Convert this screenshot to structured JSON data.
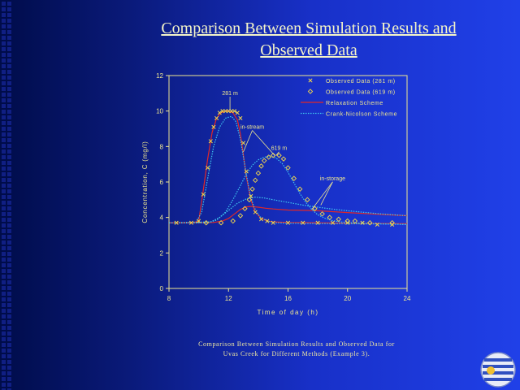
{
  "slide": {
    "title_line1": "Comparison Between Simulation Results and",
    "title_line2": "Observed Data",
    "caption_line1": "Comparison Between Simulation Results and Observed Data for",
    "caption_line2": "Uvas Creek for Different Methods (Example 3)."
  },
  "chart_data": {
    "type": "line",
    "xlabel": "Time of day (h)",
    "ylabel": "Concentration, C (mg/l)",
    "xlim": [
      8,
      24
    ],
    "ylim": [
      0,
      12
    ],
    "x_ticks": [
      8,
      12,
      16,
      20,
      24
    ],
    "y_ticks": [
      0,
      2,
      4,
      6,
      8,
      10,
      12
    ],
    "grid": false,
    "legend_position": "top-right",
    "colors": {
      "axis": "#f0e890",
      "observed_281": "#f4d84a",
      "observed_619": "#f4d84a",
      "relaxation": "#e02828",
      "crank_nicolson": "#40c8f0"
    },
    "series": [
      {
        "name": "Observed Data (281 m)",
        "style": "marker-x",
        "x": [
          8.5,
          9.5,
          10,
          10.3,
          10.6,
          10.8,
          11.0,
          11.2,
          11.4,
          11.6,
          11.8,
          12.0,
          12.2,
          12.4,
          12.6,
          12.8,
          13.0,
          13.2,
          13.5,
          13.8,
          14.2,
          14.6,
          15.0,
          16,
          17,
          18,
          19,
          20,
          21,
          22,
          23
        ],
        "y": [
          3.7,
          3.7,
          3.8,
          5.3,
          6.8,
          8.3,
          9.1,
          9.6,
          9.9,
          10.0,
          10.0,
          10.0,
          10.0,
          10.0,
          9.9,
          9.6,
          8.2,
          6.6,
          5.2,
          4.3,
          3.9,
          3.8,
          3.7,
          3.7,
          3.7,
          3.7,
          3.7,
          3.7,
          3.7,
          3.6,
          3.6
        ]
      },
      {
        "name": "Observed Data (619 m)",
        "style": "marker-diamond",
        "x": [
          10.5,
          11.5,
          12.3,
          12.8,
          13.1,
          13.4,
          13.6,
          13.8,
          14.0,
          14.2,
          14.4,
          14.7,
          15.0,
          15.4,
          15.7,
          16.0,
          16.4,
          16.8,
          17.3,
          17.8,
          18.3,
          18.8,
          19.4,
          20.0,
          20.5,
          21.5,
          23.0
        ],
        "y": [
          3.7,
          3.7,
          3.8,
          4.1,
          4.5,
          5.0,
          5.6,
          6.1,
          6.5,
          6.9,
          7.2,
          7.4,
          7.5,
          7.5,
          7.3,
          6.8,
          6.2,
          5.6,
          5.0,
          4.5,
          4.2,
          4.0,
          3.9,
          3.8,
          3.8,
          3.7,
          3.7
        ]
      },
      {
        "name": "Relaxation Scheme",
        "style": "solid",
        "x": [
          8,
          9.6,
          10.0,
          10.3,
          10.6,
          10.9,
          11.2,
          11.5,
          11.8,
          12.0,
          12.3,
          12.6,
          12.8,
          13.0,
          13.2,
          13.5,
          13.8,
          14.2,
          14.6,
          15,
          16,
          18,
          20,
          24
        ],
        "y": [
          3.7,
          3.7,
          3.8,
          5.5,
          7.3,
          8.8,
          9.6,
          9.9,
          10.0,
          10.0,
          9.9,
          9.5,
          8.7,
          7.5,
          6.3,
          5.0,
          4.3,
          3.95,
          3.8,
          3.75,
          3.72,
          3.7,
          3.68,
          3.65
        ]
      },
      {
        "name": "Relaxation Scheme",
        "style": "solid",
        "x": [
          8,
          11.0,
          11.6,
          12.0,
          12.4,
          12.8,
          13.2,
          13.5,
          14.0,
          14.5,
          15.0,
          16.0,
          17.0,
          18.0,
          19.0,
          20.0,
          22.0,
          24.0
        ],
        "y": [
          3.7,
          3.72,
          3.8,
          3.95,
          4.2,
          4.45,
          4.6,
          4.62,
          4.58,
          4.52,
          4.48,
          4.42,
          4.4,
          4.38,
          4.33,
          4.28,
          4.18,
          4.1
        ]
      },
      {
        "name": "Crank-Nicolson Scheme",
        "style": "dotted",
        "x": [
          8,
          9.8,
          10.2,
          10.6,
          11.0,
          11.4,
          11.8,
          12.2,
          12.5,
          12.8,
          13.1,
          13.4,
          13.7,
          14.1,
          14.6,
          15.2,
          16,
          18,
          20,
          24
        ],
        "y": [
          3.7,
          3.7,
          4.3,
          6.2,
          8.0,
          9.1,
          9.6,
          9.7,
          9.4,
          8.4,
          6.9,
          5.5,
          4.6,
          4.05,
          3.8,
          3.7,
          3.68,
          3.66,
          3.65,
          3.62
        ]
      },
      {
        "name": "Crank-Nicolson Scheme",
        "style": "dotted",
        "x": [
          8,
          10.6,
          11.2,
          11.8,
          12.3,
          12.8,
          13.2,
          13.6,
          14.0,
          14.4,
          14.8,
          15.2,
          15.6,
          16.0,
          16.4,
          16.8,
          17.2,
          17.6,
          18.0,
          18.5,
          19.0,
          19.5,
          20.0,
          21,
          22,
          24
        ],
        "y": [
          3.7,
          3.7,
          3.85,
          4.3,
          5.0,
          5.8,
          6.45,
          6.95,
          7.25,
          7.4,
          7.45,
          7.35,
          7.05,
          6.55,
          5.95,
          5.35,
          4.85,
          4.45,
          4.15,
          3.95,
          3.82,
          3.75,
          3.72,
          3.68,
          3.65,
          3.6
        ]
      },
      {
        "name": "Crank-Nicolson Scheme",
        "style": "dotted",
        "x": [
          8,
          10.8,
          11.4,
          12.0,
          12.6,
          13.2,
          13.8,
          14.4,
          15.0,
          16.0,
          17.0,
          18.0,
          19.0,
          20.0,
          22.0,
          24.0
        ],
        "y": [
          3.7,
          3.75,
          4.0,
          4.4,
          4.8,
          5.05,
          5.15,
          5.1,
          5.0,
          4.85,
          4.7,
          4.58,
          4.47,
          4.38,
          4.22,
          4.1
        ]
      }
    ],
    "annotations": [
      {
        "text": "281 m",
        "x": 12.1,
        "y": 10.9,
        "arrow_to": [
          12.1,
          10.05
        ]
      },
      {
        "text": "in-stream",
        "x": 13.6,
        "y": 9.0,
        "arrow_to": [
          13.0,
          7.7
        ],
        "arrow_to2": [
          15.1,
          7.5
        ]
      },
      {
        "text": "619 m",
        "x": 15.4,
        "y": 7.8,
        "arrow_to": [
          15.2,
          7.5
        ]
      },
      {
        "text": "in-storage",
        "x": 19.0,
        "y": 6.1,
        "arrow_to": [
          17.6,
          4.45
        ],
        "arrow_to2": [
          18.2,
          4.7
        ]
      }
    ]
  }
}
